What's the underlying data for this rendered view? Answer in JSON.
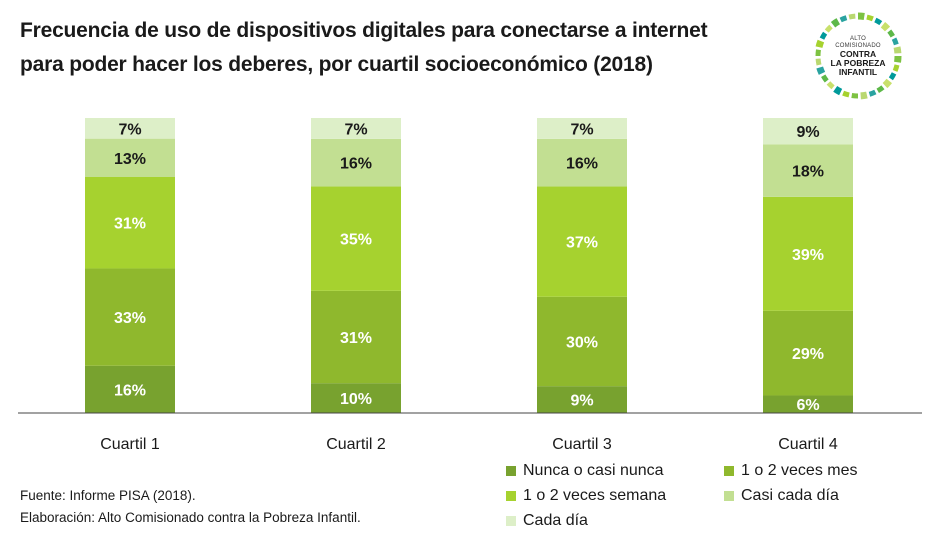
{
  "title": {
    "line1": "Frecuencia de uso de dispositivos digitales para conectarse a internet",
    "line2": "para poder hacer los deberes, por cuartil socioeconómico (2018)"
  },
  "logo": {
    "line1": "ALTO",
    "line2": "COMISIONADO",
    "line3": "CONTRA",
    "line4": "LA POBREZA",
    "line5": "INFANTIL"
  },
  "source": {
    "line1": "Fuente: Informe PISA (2018).",
    "line2": "Elaboración: Alto Comisionado contra la Pobreza Infantil."
  },
  "chart_data": {
    "type": "bar",
    "stacked": true,
    "categories": [
      "Cuartil 1",
      "Cuartil 2",
      "Cuartil 3",
      "Cuartil 4"
    ],
    "series": [
      {
        "name": "Nunca o casi nunca",
        "values": [
          16,
          10,
          9,
          6
        ],
        "color": "#78a22f"
      },
      {
        "name": "1 o 2 veces mes",
        "values": [
          33,
          31,
          30,
          29
        ],
        "color": "#8fb82d"
      },
      {
        "name": "1 o 2 veces semana",
        "values": [
          31,
          35,
          37,
          39
        ],
        "color": "#a6d22f"
      },
      {
        "name": "Casi cada día",
        "values": [
          13,
          16,
          16,
          18
        ],
        "color": "#c2df92"
      },
      {
        "name": "Cada día",
        "values": [
          7,
          7,
          7,
          9
        ],
        "color": "#ddefc8"
      }
    ],
    "labels": [
      [
        "16%",
        "10%",
        "9%",
        "6%"
      ],
      [
        "33%",
        "31%",
        "30%",
        "29%"
      ],
      [
        "31%",
        "35%",
        "37%",
        "39%"
      ],
      [
        "13%",
        "16%",
        "16%",
        "18%"
      ],
      [
        "7%",
        "7%",
        "7%",
        "9%"
      ]
    ],
    "ylim": [
      0,
      100
    ],
    "grid": false,
    "legend_position": "bottom-right"
  }
}
